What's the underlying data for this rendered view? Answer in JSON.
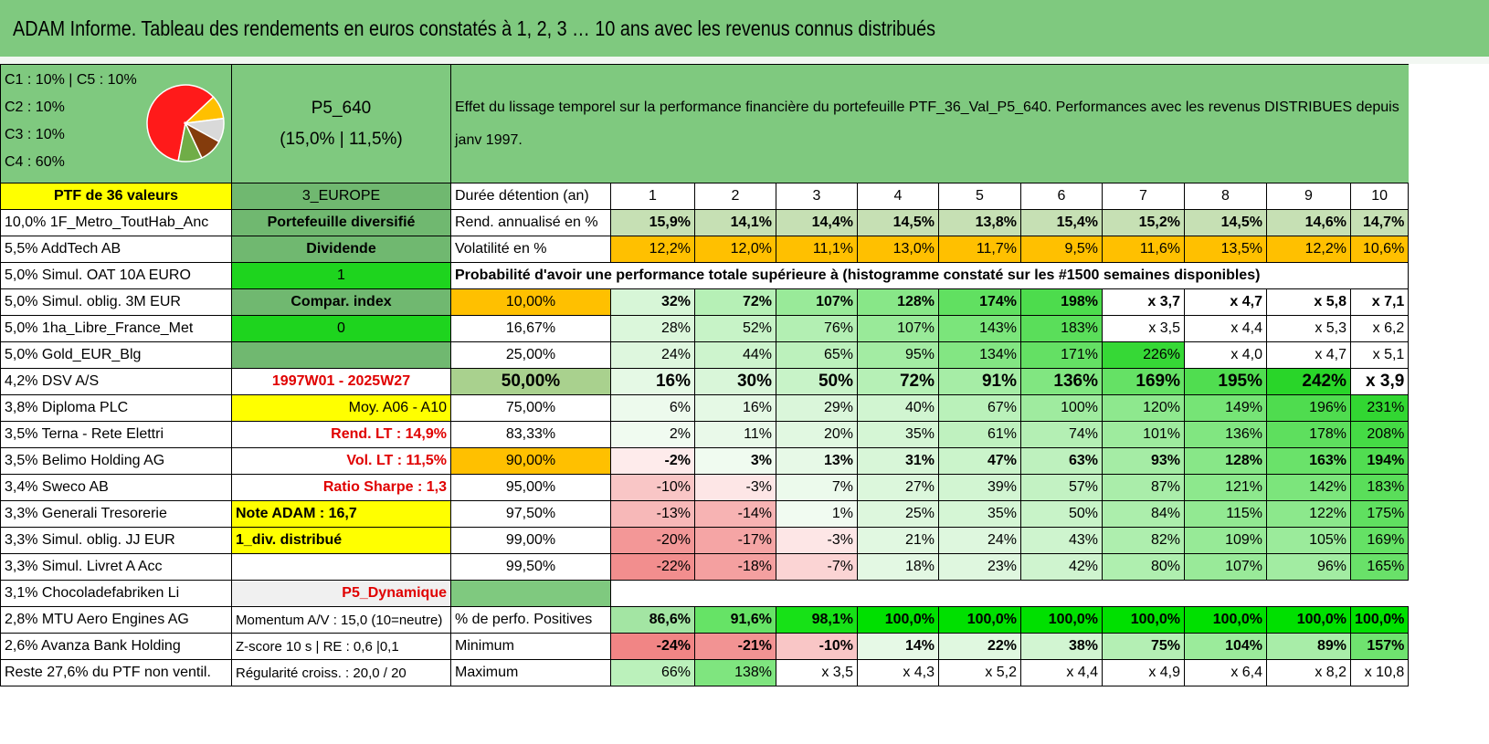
{
  "title": "ADAM Informe. Tableau des rendements en euros constatés à 1, 2, 3 … 10 ans avec les revenus connus distribués",
  "allocation": {
    "labels": [
      "C1 : 10% | C5 : 10%",
      "C2 : 10%",
      "C3 : 10%",
      "C4 : 60%"
    ],
    "pie": [
      {
        "name": "C4",
        "value": 60,
        "color": "#ff1a1a"
      },
      {
        "name": "C5",
        "value": 10,
        "color": "#ffc000"
      },
      {
        "name": "C1",
        "value": 10,
        "color": "#d9d9d9"
      },
      {
        "name": "C2",
        "value": 10,
        "color": "#843c0c"
      },
      {
        "name": "C3",
        "value": 10,
        "color": "#70ad47"
      }
    ]
  },
  "portfolio": {
    "code": "P5_640",
    "sub": "(15,0% | 11,5%)"
  },
  "description": "Effet du lissage temporel sur la performance financière du portefeuille PTF_36_Val_P5_640. Performances avec les revenus DISTRIBUES depuis janv 1997.",
  "holdings": [
    "PTF de 36 valeurs",
    "10,0% 1F_Metro_ToutHab_Anc",
    "5,5% AddTech AB",
    "5,0% Simul. OAT 10A EURO",
    "5,0% Simul. oblig. 3M EUR",
    "5,0% 1ha_Libre_France_Met",
    "5,0% Gold_EUR_Blg",
    "4,2% DSV A/S",
    "3,8% Diploma PLC",
    "3,5% Terna - Rete Elettri",
    "3,5% Belimo Holding AG",
    "3,4% Sweco AB",
    "3,3% Generali Tresorerie",
    "3,3% Simul. oblig. JJ EUR",
    "3,3% Simul. Livret A Acc",
    "3,1% Chocoladefabriken Li",
    "2,8% MTU Aero Engines AG",
    "2,6% Avanza Bank Holding",
    "Reste 27,6% du PTF non ventil."
  ],
  "info": [
    "3_EUROPE",
    "Portefeuille diversifié",
    "Dividende",
    "1",
    "Compar. index",
    "0",
    "",
    "1997W01 - 2025W27",
    "Moy. A06 - A10",
    "Rend. LT : 14,9%",
    "Vol. LT : 11,5%",
    "Ratio Sharpe : 1,3",
    "Note ADAM : 16,7",
    "1_div. distribué",
    "",
    "P5_Dynamique",
    "Momentum A/V : 15,0 (10=neutre)",
    "Z-score 10 s | RE : 0,6 |0,1",
    "Régularité croiss. : 20,0 / 20"
  ],
  "years_label": "Durée détention (an)",
  "years": [
    "1",
    "2",
    "3",
    "4",
    "5",
    "6",
    "7",
    "8",
    "9",
    "10"
  ],
  "rend_label": "Rend. annualisé en %",
  "rend": [
    "15,9%",
    "14,1%",
    "14,4%",
    "14,5%",
    "13,8%",
    "15,4%",
    "15,2%",
    "14,5%",
    "14,6%",
    "14,7%"
  ],
  "vol_label": "Volatilité en %",
  "vol": [
    "12,2%",
    "12,0%",
    "11,1%",
    "13,0%",
    "11,7%",
    "9,5%",
    "11,6%",
    "13,5%",
    "12,2%",
    "10,6%"
  ],
  "prob_title": "Probabilité d'avoir une performance totale supérieure à (histogramme constaté sur les #1500 semaines disponibles)",
  "prob_rows": [
    {
      "p": "10,00%",
      "v": [
        "32%",
        "72%",
        "107%",
        "128%",
        "174%",
        "198%",
        "x 3,7",
        "x 4,7",
        "x 5,8",
        "x 7,1"
      ]
    },
    {
      "p": "16,67%",
      "v": [
        "28%",
        "52%",
        "76%",
        "107%",
        "143%",
        "183%",
        "x 3,5",
        "x 4,4",
        "x 5,3",
        "x 6,2"
      ]
    },
    {
      "p": "25,00%",
      "v": [
        "24%",
        "44%",
        "65%",
        "95%",
        "134%",
        "171%",
        "226%",
        "x 4,0",
        "x 4,7",
        "x 5,1"
      ]
    },
    {
      "p": "50,00%",
      "v": [
        "16%",
        "30%",
        "50%",
        "72%",
        "91%",
        "136%",
        "169%",
        "195%",
        "242%",
        "x 3,9"
      ]
    },
    {
      "p": "75,00%",
      "v": [
        "6%",
        "16%",
        "29%",
        "40%",
        "67%",
        "100%",
        "120%",
        "149%",
        "196%",
        "231%"
      ]
    },
    {
      "p": "83,33%",
      "v": [
        "2%",
        "11%",
        "20%",
        "35%",
        "61%",
        "74%",
        "101%",
        "136%",
        "178%",
        "208%"
      ]
    },
    {
      "p": "90,00%",
      "v": [
        "-2%",
        "3%",
        "13%",
        "31%",
        "47%",
        "63%",
        "93%",
        "128%",
        "163%",
        "194%"
      ]
    },
    {
      "p": "95,00%",
      "v": [
        "-10%",
        "-3%",
        "7%",
        "27%",
        "39%",
        "57%",
        "87%",
        "121%",
        "142%",
        "183%"
      ]
    },
    {
      "p": "97,50%",
      "v": [
        "-13%",
        "-14%",
        "1%",
        "25%",
        "35%",
        "50%",
        "84%",
        "115%",
        "122%",
        "175%"
      ]
    },
    {
      "p": "99,00%",
      "v": [
        "-20%",
        "-17%",
        "-3%",
        "21%",
        "24%",
        "43%",
        "82%",
        "109%",
        "105%",
        "169%"
      ]
    },
    {
      "p": "99,50%",
      "v": [
        "-22%",
        "-18%",
        "-7%",
        "18%",
        "23%",
        "42%",
        "80%",
        "107%",
        "96%",
        "165%"
      ]
    }
  ],
  "pos_label": "% de perfo. Positives",
  "pos": [
    "86,6%",
    "91,6%",
    "98,1%",
    "100,0%",
    "100,0%",
    "100,0%",
    "100,0%",
    "100,0%",
    "100,0%",
    "100,0%"
  ],
  "min_label": "Minimum",
  "min": [
    "-24%",
    "-21%",
    "-10%",
    "14%",
    "22%",
    "38%",
    "75%",
    "104%",
    "89%",
    "157%"
  ],
  "max_label": "Maximum",
  "max": [
    "66%",
    "138%",
    "x 3,5",
    "x 4,3",
    "x 5,2",
    "x 4,4",
    "x 4,9",
    "x 6,4",
    "x 8,2",
    "x 10,8"
  ],
  "colors": {
    "header_green": "#7fc97f",
    "mid_green": "#70b870",
    "bright_green": "#1ed41e",
    "yellow": "#ffff00",
    "orange": "#ffc000",
    "red_text": "#e00000"
  }
}
